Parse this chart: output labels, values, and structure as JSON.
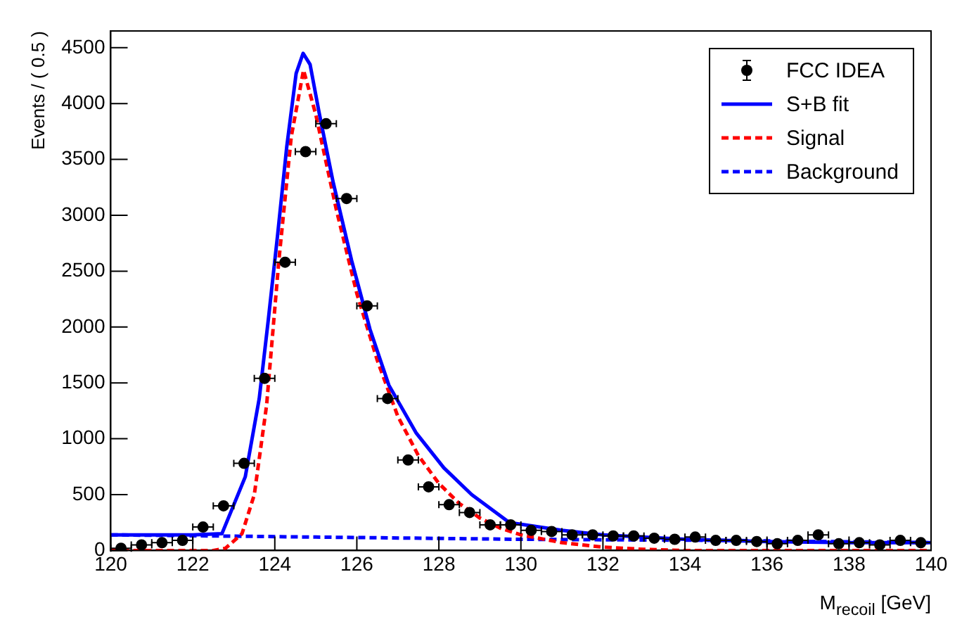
{
  "chart_data": {
    "type": "scatter",
    "xlabel": "M$_{recoil}$ [GeV]",
    "ylabel": "Events / ( 0.5 )",
    "xlim": [
      120,
      140
    ],
    "xticks": [
      120,
      122,
      124,
      126,
      128,
      130,
      132,
      134,
      136,
      138,
      140
    ],
    "ylim": [
      0,
      4650
    ],
    "yticks": [
      0,
      500,
      1000,
      1500,
      2000,
      2500,
      3000,
      3500,
      4000,
      4500
    ],
    "grid": false,
    "legend": "top right",
    "series": [
      {
        "name": "FCC IDEA",
        "marker": "circle",
        "color": "#000000",
        "x": [
          120.25,
          120.75,
          121.25,
          121.75,
          122.25,
          122.75,
          123.25,
          123.75,
          124.25,
          124.75,
          125.25,
          125.75,
          126.25,
          126.75,
          127.25,
          127.75,
          128.25,
          128.75,
          129.25,
          129.75,
          130.25,
          130.75,
          131.25,
          131.75,
          132.25,
          132.75,
          133.25,
          133.75,
          134.25,
          134.75,
          135.25,
          135.75,
          136.25,
          136.75,
          137.25,
          137.75,
          138.25,
          138.75,
          139.25,
          139.75
        ],
        "values": [
          20,
          50,
          70,
          90,
          210,
          400,
          780,
          1540,
          2580,
          3570,
          3820,
          3150,
          2190,
          1360,
          810,
          570,
          410,
          340,
          230,
          230,
          180,
          170,
          140,
          140,
          130,
          130,
          110,
          100,
          120,
          90,
          90,
          80,
          60,
          90,
          140,
          60,
          70,
          50,
          90,
          70
        ],
        "xerrors": [
          0.25,
          0.25,
          0.25,
          0.25,
          0.25,
          0.25,
          0.25,
          0.25,
          0.25,
          0.25,
          0.25,
          0.25,
          0.25,
          0.25,
          0.25,
          0.25,
          0.25,
          0.25,
          0.25,
          0.25,
          0.25,
          0.25,
          0.25,
          0.25,
          0.25,
          0.25,
          0.25,
          0.25,
          0.25,
          0.25,
          0.25,
          0.25,
          0.25,
          0.25,
          0.25,
          0.25,
          0.25,
          0.25,
          0.25,
          0.25
        ]
      },
      {
        "name": "S+B fit",
        "type": "line",
        "marker": "none",
        "line_style": "solid",
        "color": "#0000ff",
        "x": [
          120,
          122,
          122.71,
          123.28,
          123.62,
          123.84,
          124.07,
          124.29,
          124.52,
          124.69,
          124.86,
          125.08,
          125.42,
          125.87,
          126.32,
          126.78,
          127.45,
          128.12,
          128.8,
          129.72,
          131,
          132,
          134,
          136,
          138,
          140
        ],
        "values": [
          140,
          140,
          150,
          660,
          1360,
          2060,
          2830,
          3610,
          4270,
          4450,
          4350,
          3920,
          3300,
          2600,
          1980,
          1480,
          1050,
          740,
          500,
          250,
          180,
          140,
          100,
          80,
          70,
          70
        ]
      },
      {
        "name": "Signal",
        "type": "line",
        "marker": "none",
        "line_style": "dashed",
        "color": "#ff0000",
        "x": [
          120,
          122.5,
          122.8,
          123.2,
          123.5,
          123.8,
          124.1,
          124.4,
          124.7,
          125,
          125.5,
          126,
          126.5,
          127,
          127.5,
          128,
          128.5,
          129,
          129.5,
          130,
          131,
          132,
          133,
          134,
          140
        ],
        "values": [
          0,
          0,
          20,
          150,
          500,
          1300,
          2600,
          3700,
          4300,
          3900,
          3050,
          2300,
          1700,
          1200,
          850,
          600,
          420,
          290,
          200,
          140,
          70,
          30,
          10,
          0,
          0
        ]
      },
      {
        "name": "Background",
        "type": "line",
        "marker": "none",
        "line_style": "dashed",
        "color": "#0000ff",
        "x": [
          120,
          125,
          130,
          135,
          140
        ],
        "values": [
          140,
          120,
          100,
          90,
          70
        ]
      }
    ]
  }
}
